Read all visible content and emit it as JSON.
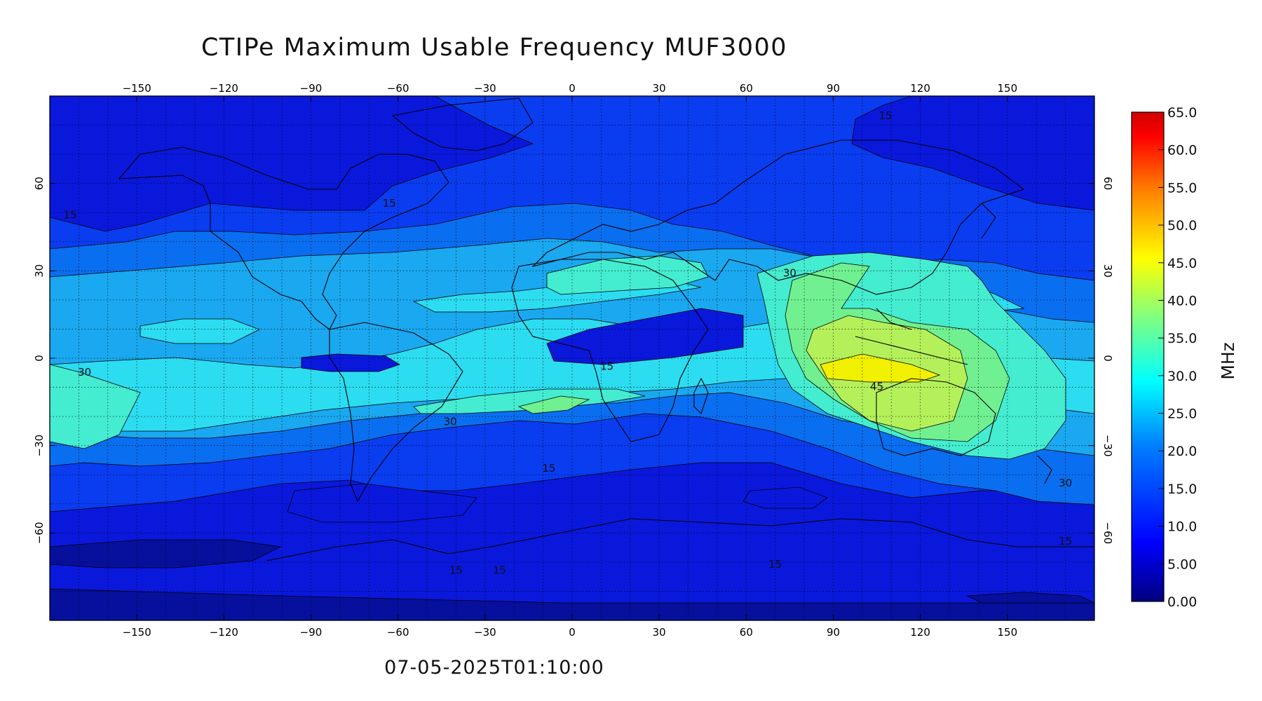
{
  "title": "CTIPe Maximum Usable Frequency MUF3000",
  "timestamp": "07-05-2025T01:10:00",
  "map": {
    "lon_range": [
      -180,
      180
    ],
    "lat_range": [
      -90,
      90
    ],
    "lon_ticks": [
      -150,
      -120,
      -90,
      -60,
      -30,
      0,
      30,
      60,
      90,
      120,
      150
    ],
    "lat_ticks": [
      -60,
      -30,
      0,
      30,
      60
    ],
    "lon_tick_labels": [
      "−150",
      "−120",
      "−90",
      "−60",
      "−30",
      "0",
      "30",
      "60",
      "90",
      "120",
      "150"
    ],
    "lat_tick_labels": [
      "−60",
      "−30",
      "0",
      "30",
      "60"
    ],
    "grid": "dotted",
    "contour_interval": 5,
    "contour_labels": [
      {
        "text": "15",
        "lon": 108,
        "lat": 82
      },
      {
        "text": "15",
        "lon": -63,
        "lat": 52
      },
      {
        "text": "15",
        "lon": -173,
        "lat": 48
      },
      {
        "text": "30",
        "lon": 75,
        "lat": 28
      },
      {
        "text": "30",
        "lon": -168,
        "lat": -6
      },
      {
        "text": "15",
        "lon": 12,
        "lat": -4
      },
      {
        "text": "45",
        "lon": 105,
        "lat": -11
      },
      {
        "text": "30",
        "lon": -42,
        "lat": -23
      },
      {
        "text": "15",
        "lon": -8,
        "lat": -39
      },
      {
        "text": "30",
        "lon": 170,
        "lat": -44
      },
      {
        "text": "15",
        "lon": 170,
        "lat": -64
      },
      {
        "text": "15",
        "lon": 70,
        "lat": -72
      },
      {
        "text": "15",
        "lon": -40,
        "lat": -74
      },
      {
        "text": "15",
        "lon": -25,
        "lat": -74
      }
    ]
  },
  "colorbar": {
    "min": 0,
    "max": 65,
    "unit": "MHz",
    "tick_labels": [
      "65.0",
      "60.0",
      "55.0",
      "50.0",
      "45.0",
      "40.0",
      "35.0",
      "30.0",
      "25.0",
      "20.0",
      "15.0",
      "10.0",
      "5.00",
      "0.00"
    ],
    "colors": [
      "#00007f",
      "#0000ff",
      "#0080ff",
      "#00ffff",
      "#80ff80",
      "#ffff00",
      "#ff8000",
      "#ff0000",
      "#7f0000"
    ]
  }
}
